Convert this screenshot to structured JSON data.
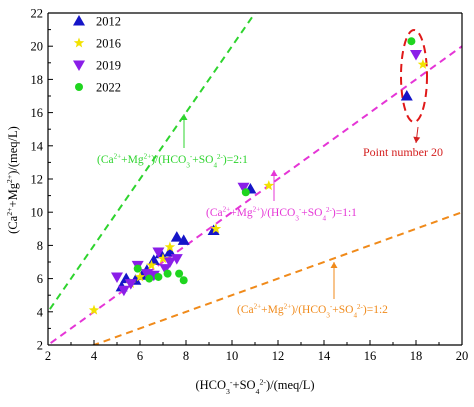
{
  "chart_data": {
    "type": "scatter",
    "xlabel_parts": [
      {
        "t": "(HCO",
        "s": 0
      },
      {
        "t": "3",
        "s": 1
      },
      {
        "t": "-",
        "s": -1
      },
      {
        "t": "+SO",
        "s": 0
      },
      {
        "t": "4",
        "s": 1
      },
      {
        "t": "2-",
        "s": -1
      },
      {
        "t": ")/(meq/L)",
        "s": 0
      }
    ],
    "ylabel_parts": [
      {
        "t": "(Ca",
        "s": 0
      },
      {
        "t": "2+",
        "s": -1
      },
      {
        "t": "+Mg",
        "s": 0
      },
      {
        "t": "2+",
        "s": -1
      },
      {
        "t": ")/(meq/L)",
        "s": 0
      }
    ],
    "xlim": [
      2,
      20
    ],
    "ylim": [
      2,
      22
    ],
    "xticks": [
      2,
      4,
      6,
      8,
      10,
      12,
      14,
      16,
      18,
      20
    ],
    "yticks": [
      2,
      4,
      6,
      8,
      10,
      12,
      14,
      16,
      18,
      20,
      22
    ],
    "legend_position": "top-left",
    "series": [
      {
        "name": "2012",
        "marker": "triangle-up",
        "color": "#1515c8",
        "points": [
          [
            5.2,
            5.5
          ],
          [
            5.4,
            6.0
          ],
          [
            5.8,
            5.9
          ],
          [
            6.1,
            6.2
          ],
          [
            6.3,
            6.5
          ],
          [
            6.6,
            7.1
          ],
          [
            6.9,
            7.5
          ],
          [
            7.3,
            7.6
          ],
          [
            7.6,
            8.5
          ],
          [
            7.9,
            8.3
          ],
          [
            9.2,
            8.9
          ],
          [
            10.8,
            11.4
          ],
          [
            17.6,
            17.0
          ]
        ]
      },
      {
        "name": "2016",
        "marker": "star",
        "color": "#f2e200",
        "points": [
          [
            4.0,
            4.1
          ],
          [
            5.6,
            5.7
          ],
          [
            6.0,
            6.1
          ],
          [
            6.5,
            6.8
          ],
          [
            7.0,
            7.2
          ],
          [
            7.3,
            7.9
          ],
          [
            9.3,
            9.0
          ],
          [
            11.6,
            11.6
          ],
          [
            18.3,
            18.9
          ]
        ]
      },
      {
        "name": "2019",
        "marker": "triangle-down",
        "color": "#8a1ee8",
        "points": [
          [
            5.0,
            6.1
          ],
          [
            5.3,
            5.3
          ],
          [
            5.6,
            5.7
          ],
          [
            5.9,
            6.8
          ],
          [
            6.3,
            6.3
          ],
          [
            6.6,
            6.2
          ],
          [
            6.8,
            7.6
          ],
          [
            7.1,
            6.6
          ],
          [
            7.3,
            7.0
          ],
          [
            7.6,
            7.2
          ],
          [
            10.5,
            11.5
          ],
          [
            18.0,
            19.5
          ]
        ]
      },
      {
        "name": "2022",
        "marker": "circle",
        "color": "#1fd51f",
        "points": [
          [
            5.9,
            6.6
          ],
          [
            6.4,
            6.0
          ],
          [
            6.8,
            6.1
          ],
          [
            7.2,
            6.3
          ],
          [
            7.7,
            6.3
          ],
          [
            7.9,
            5.9
          ],
          [
            10.6,
            11.2
          ],
          [
            17.8,
            20.3
          ]
        ]
      }
    ],
    "reference_lines": [
      {
        "slope": 2,
        "color": "#2ed42e",
        "dash": "7,5"
      },
      {
        "slope": 1,
        "color": "#e535d6",
        "dash": "7,5"
      },
      {
        "slope": 0.5,
        "color": "#f08a1a",
        "dash": "7,5"
      }
    ],
    "annotations": [
      {
        "color": "#2ed42e",
        "parts": [
          {
            "t": "(Ca",
            "s": 0
          },
          {
            "t": "2+",
            "s": -1
          },
          {
            "t": "+Mg",
            "s": 0
          },
          {
            "t": "2+",
            "s": -1
          },
          {
            "t": ")/(HCO",
            "s": 0
          },
          {
            "t": "3",
            "s": 1
          },
          {
            "t": "-",
            "s": -1
          },
          {
            "t": "+SO",
            "s": 0
          },
          {
            "t": "4",
            "s": 1
          },
          {
            "t": "2-",
            "s": -1
          },
          {
            "t": ")=2:1",
            "s": 0
          }
        ]
      },
      {
        "color": "#e535d6",
        "parts": [
          {
            "t": "(Ca",
            "s": 0
          },
          {
            "t": "2+",
            "s": -1
          },
          {
            "t": "+Mg",
            "s": 0
          },
          {
            "t": "2+",
            "s": -1
          },
          {
            "t": ")/(HCO",
            "s": 0
          },
          {
            "t": "3",
            "s": 1
          },
          {
            "t": "-",
            "s": -1
          },
          {
            "t": "+SO",
            "s": 0
          },
          {
            "t": "4",
            "s": 1
          },
          {
            "t": "2-",
            "s": -1
          },
          {
            "t": ")=1:1",
            "s": 0
          }
        ]
      },
      {
        "color": "#f08a1a",
        "parts": [
          {
            "t": "(Ca",
            "s": 0
          },
          {
            "t": "2+",
            "s": -1
          },
          {
            "t": "+Mg",
            "s": 0
          },
          {
            "t": "2+",
            "s": -1
          },
          {
            "t": ")/(HCO",
            "s": 0
          },
          {
            "t": "3",
            "s": 1
          },
          {
            "t": "-",
            "s": -1
          },
          {
            "t": "+SO",
            "s": 0
          },
          {
            "t": "4",
            "s": 1
          },
          {
            "t": "2-",
            "s": -1
          },
          {
            "t": ")=1:2",
            "s": 0
          }
        ]
      },
      {
        "color": "#d42020",
        "parts": [
          {
            "t": "Point number 20",
            "s": 0
          }
        ]
      }
    ]
  }
}
